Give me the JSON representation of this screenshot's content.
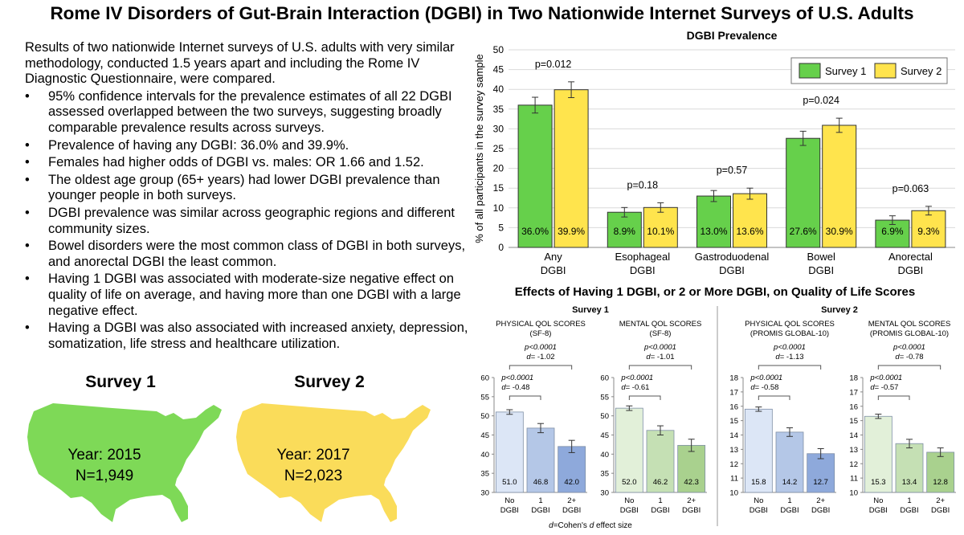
{
  "title": "Rome IV Disorders of Gut-Brain Interaction (DGBI) in Two Nationwide Internet Surveys of U.S. Adults",
  "summary": {
    "intro": "Results of two nationwide Internet surveys of U.S. adults with very similar methodology, conducted 1.5 years apart and including the Rome IV Diagnostic Questionnaire, were compared.",
    "bullet_char": "•",
    "bullets": [
      "95% confidence intervals for the prevalence estimates of all 22 DGBI assessed overlapped between the two surveys, suggesting broadly comparable prevalence results across surveys.",
      "Prevalence of having any DGBI: 36.0% and 39.9%.",
      "Females had higher odds of DGBI vs. males: OR 1.66 and 1.52.",
      "The oldest age group (65+ years) had lower DGBI prevalence than younger people in both surveys.",
      "DGBI prevalence was similar across geographic regions and different community sizes.",
      "Bowel disorders were the most common class of DGBI in both surveys, and anorectal DGBI the least common.",
      "Having 1 DGBI was associated with moderate-size negative effect on quality of life on average, and having more than one DGBI with a large negative effect.",
      "Having a DGBI was also associated with increased anxiety, depression, somatization, life stress and healthcare utilization."
    ]
  },
  "maps": [
    {
      "title": "Survey 1",
      "year": "Year: 2015",
      "n": "N=1,949",
      "color": "#7ED957"
    },
    {
      "title": "Survey 2",
      "year": "Year: 2017",
      "n": "N=2,023",
      "color": "#FADC5A"
    }
  ],
  "colors": {
    "survey1": "#66D04B",
    "survey2": "#FFE44D",
    "qol_s1_no": "#DCE6F6",
    "qol_s1_one": "#B4C7E7",
    "qol_s1_two": "#8EA9DB",
    "qol_s2_no": "#E2F0D9",
    "qol_s2_one": "#C5E0B4",
    "qol_s2_two": "#A9D18E"
  },
  "chart_data": [
    {
      "type": "bar",
      "title": "DGBI Prevalence",
      "ylabel": "% of all participants in the survey sample",
      "ylim": [
        0,
        50
      ],
      "yticks": [
        "0",
        "5",
        "10",
        "15",
        "20",
        "25",
        "30",
        "35",
        "40",
        "45",
        "50"
      ],
      "categories": [
        [
          "Any",
          "DGBI"
        ],
        [
          "Esophageal",
          "DGBI"
        ],
        [
          "Gastroduodenal",
          "DGBI"
        ],
        [
          "Bowel",
          "DGBI"
        ],
        [
          "Anorectal",
          "DGBI"
        ]
      ],
      "series": [
        {
          "name": "Survey 1",
          "values": [
            36.0,
            8.9,
            13.0,
            27.6,
            6.9
          ],
          "labels": [
            "36.0%",
            "8.9%",
            "13.0%",
            "27.6%",
            "6.9%"
          ],
          "err": [
            2.0,
            1.2,
            1.4,
            1.8,
            1.1
          ]
        },
        {
          "name": "Survey 2",
          "values": [
            39.9,
            10.1,
            13.6,
            30.9,
            9.3
          ],
          "labels": [
            "39.9%",
            "10.1%",
            "13.6%",
            "30.9%",
            "9.3%"
          ],
          "err": [
            2.0,
            1.2,
            1.4,
            1.8,
            1.1
          ]
        }
      ],
      "pvalues": [
        "p=0.012",
        "p=0.18",
        "p=0.57",
        "p=0.024",
        "p=0.063"
      ],
      "legend": "top-right",
      "grid": true
    },
    {
      "type": "bar",
      "title": "Effects of Having 1 DGBI, or 2 or More DGBI, on Quality of Life Scores",
      "footnote_italic": "d",
      "footnote": "=Cohen's ",
      "footnote_italic2": "d",
      "footnote_end": " effect size",
      "survey_labels": [
        "Survey 1",
        "Survey 2"
      ],
      "panels": [
        {
          "title": [
            "PHYSICAL QOL SCORES",
            "(SF-8)"
          ],
          "ylim": [
            30,
            60
          ],
          "yticks": [
            "30",
            "35",
            "40",
            "45",
            "50",
            "55",
            "60"
          ],
          "categories": [
            [
              "No",
              "DGBI"
            ],
            [
              "1",
              "DGBI"
            ],
            [
              "2+",
              "DGBI"
            ]
          ],
          "values": [
            51.0,
            46.8,
            42.0
          ],
          "labels": [
            "51.0",
            "46.8",
            "42.0"
          ],
          "err": [
            0.6,
            1.2,
            1.6
          ],
          "top_p": "p<0.0001",
          "top_d": "= -1.02",
          "low_p": "p<0.0001",
          "low_d": "= -0.48",
          "palette": [
            "qol_s1_no",
            "qol_s1_one",
            "qol_s1_two"
          ]
        },
        {
          "title": [
            "MENTAL QOL SCORES",
            "(SF-8)"
          ],
          "ylim": [
            30,
            60
          ],
          "yticks": [
            "30",
            "35",
            "40",
            "45",
            "50",
            "55",
            "60"
          ],
          "categories": [
            [
              "No",
              "DGBI"
            ],
            [
              "1",
              "DGBI"
            ],
            [
              "2+",
              "DGBI"
            ]
          ],
          "values": [
            52.0,
            46.2,
            42.3
          ],
          "labels": [
            "52.0",
            "46.2",
            "42.3"
          ],
          "err": [
            0.6,
            1.2,
            1.6
          ],
          "top_p": "p<0.0001",
          "top_d": "= -1.01",
          "low_p": "p<0.0001",
          "low_d": "= -0.61",
          "palette": [
            "qol_s2_no",
            "qol_s2_one",
            "qol_s2_two"
          ]
        },
        {
          "title": [
            "PHYSICAL QOL SCORES",
            "(PROMIS GLOBAL-10)"
          ],
          "ylim": [
            10,
            18
          ],
          "yticks": [
            "10",
            "11",
            "12",
            "13",
            "14",
            "15",
            "16",
            "17",
            "18"
          ],
          "categories": [
            [
              "No",
              "DGBI"
            ],
            [
              "1",
              "DGBI"
            ],
            [
              "2+",
              "DGBI"
            ]
          ],
          "values": [
            15.8,
            14.2,
            12.7
          ],
          "labels": [
            "15.8",
            "14.2",
            "12.7"
          ],
          "err": [
            0.15,
            0.3,
            0.35
          ],
          "top_p": "p<0.0001",
          "top_d": "= -1.13",
          "low_p": "p<0.0001",
          "low_d": "= -0.58",
          "palette": [
            "qol_s1_no",
            "qol_s1_one",
            "qol_s1_two"
          ]
        },
        {
          "title": [
            "MENTAL QOL SCORES",
            "(PROMIS GLOBAL-10)"
          ],
          "ylim": [
            10,
            18
          ],
          "yticks": [
            "10",
            "11",
            "12",
            "13",
            "14",
            "15",
            "16",
            "17",
            "18"
          ],
          "categories": [
            [
              "No",
              "DGBI"
            ],
            [
              "1",
              "DGBI"
            ],
            [
              "2+",
              "DGBI"
            ]
          ],
          "values": [
            15.3,
            13.4,
            12.8
          ],
          "labels": [
            "15.3",
            "13.4",
            "12.8"
          ],
          "err": [
            0.15,
            0.3,
            0.3
          ],
          "top_p": "p<0.0001",
          "top_d": "= -0.78",
          "low_p": "p<0.0001",
          "low_d": "= -0.57",
          "palette": [
            "qol_s2_no",
            "qol_s2_one",
            "qol_s2_two"
          ]
        }
      ]
    }
  ]
}
